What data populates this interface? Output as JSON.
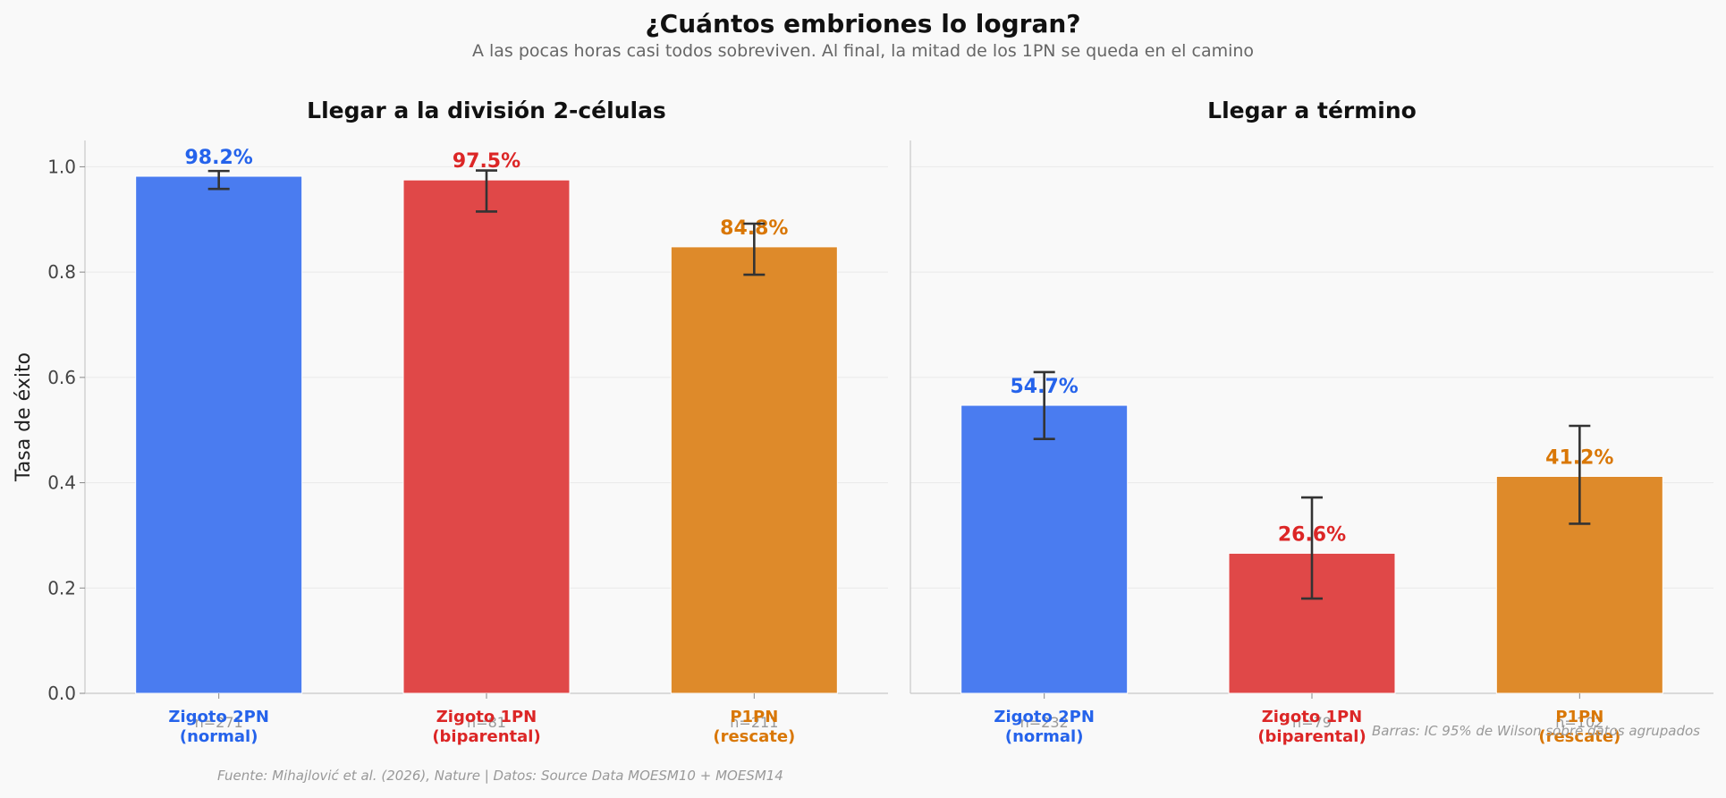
{
  "title": "¿Cuántos embriones lo logran?",
  "subtitle": "A las pocas horas casi todos sobreviven. Al final, la mitad de los 1PN se queda en el camino",
  "footnote": "Fuente: Mihajlović et al. (2026), Nature | Datos: Source Data MOESM10 + MOESM14",
  "note": "Barras: IC 95% de Wilson sobre datos agrupados",
  "colors": {
    "bars": [
      "#4a7cf0",
      "#e04848",
      "#de8a2a"
    ],
    "labels": [
      "#2563eb",
      "#dc2626",
      "#d97706"
    ]
  },
  "chart_data": [
    {
      "type": "bar",
      "title": "Llegar a la división 2-células",
      "ylabel": "Tasa de éxito",
      "ylim": [
        0,
        1.05
      ],
      "yticks": [
        "0.0",
        "0.2",
        "0.4",
        "0.6",
        "0.8",
        "1.0"
      ],
      "categories": [
        [
          "Zigoto 2PN",
          "(normal)"
        ],
        [
          "Zigoto 1PN",
          "(biparental)"
        ],
        [
          "P1PN",
          "(rescate)"
        ]
      ],
      "values": [
        0.982,
        0.975,
        0.848
      ],
      "value_labels": [
        "98.2%",
        "97.5%",
        "84.8%"
      ],
      "ci_low": [
        0.958,
        0.915,
        0.795
      ],
      "ci_high": [
        0.992,
        0.993,
        0.892
      ],
      "n_labels": [
        "n=271",
        "n=81",
        "n=211"
      ]
    },
    {
      "type": "bar",
      "title": "Llegar a término",
      "ylabel": "",
      "ylim": [
        0,
        1.05
      ],
      "categories": [
        [
          "Zigoto 2PN",
          "(normal)"
        ],
        [
          "Zigoto 1PN",
          "(biparental)"
        ],
        [
          "P1PN",
          "(rescate)"
        ]
      ],
      "values": [
        0.547,
        0.266,
        0.412
      ],
      "value_labels": [
        "54.7%",
        "26.6%",
        "41.2%"
      ],
      "ci_low": [
        0.483,
        0.18,
        0.322
      ],
      "ci_high": [
        0.61,
        0.372,
        0.508
      ],
      "n_labels": [
        "n=232",
        "n=79",
        "n=102"
      ]
    }
  ]
}
